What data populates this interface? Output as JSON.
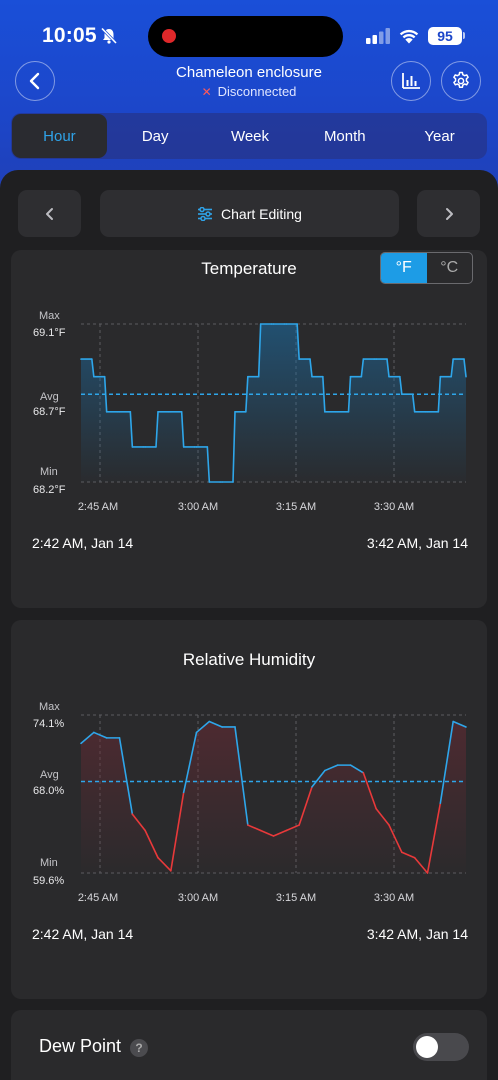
{
  "status_bar": {
    "time": "10:05",
    "battery": "95"
  },
  "header": {
    "title": "Chameleon enclosure",
    "connection_status": "Disconnected"
  },
  "tabs": [
    {
      "label": "Hour",
      "active": true
    },
    {
      "label": "Day",
      "active": false
    },
    {
      "label": "Week",
      "active": false
    },
    {
      "label": "Month",
      "active": false
    },
    {
      "label": "Year",
      "active": false
    }
  ],
  "controls": {
    "chart_editing_label": "Chart Editing"
  },
  "temperature_card": {
    "title": "Temperature",
    "units": [
      "°F",
      "°C"
    ],
    "active_unit": "°F",
    "max_label": "Max",
    "max_value": "69.1°F",
    "avg_label": "Avg",
    "avg_value": "68.7°F",
    "min_label": "Min",
    "min_value": "68.2°F",
    "x_ticks": [
      "2:45 AM",
      "3:00 AM",
      "3:15 AM",
      "3:30 AM"
    ],
    "range_start": "2:42 AM,  Jan 14",
    "range_end": "3:42 AM,  Jan 14"
  },
  "humidity_card": {
    "title": "Relative Humidity",
    "max_label": "Max",
    "max_value": "74.1%",
    "avg_label": "Avg",
    "avg_value": "68.0%",
    "min_label": "Min",
    "min_value": "59.6%",
    "x_ticks": [
      "2:45 AM",
      "3:00 AM",
      "3:15 AM",
      "3:30 AM"
    ],
    "range_start": "2:42 AM,  Jan 14",
    "range_end": "3:42 AM,  Jan 14"
  },
  "dew_point": {
    "label": "Dew Point",
    "help_glyph": "?",
    "enabled": false
  },
  "colors": {
    "accent": "#1d9ce6",
    "line_blue": "#2ea6ea",
    "line_red": "#e8393a",
    "header_blue": "#1c46c9"
  },
  "chart_data": [
    {
      "type": "line",
      "title": "Temperature",
      "x": [
        0,
        2,
        4,
        6,
        8,
        10,
        12,
        14,
        16,
        18,
        20,
        22,
        24,
        26,
        28,
        30,
        32,
        34,
        36,
        38,
        40,
        42,
        44,
        46,
        48,
        50,
        52,
        54,
        56,
        58,
        60
      ],
      "series": [
        {
          "values": [
            68.9,
            68.8,
            68.6,
            68.6,
            68.4,
            68.4,
            68.6,
            68.6,
            68.4,
            68.4,
            68.2,
            68.2,
            68.6,
            68.8,
            69.1,
            69.1,
            69.1,
            68.9,
            68.8,
            68.6,
            68.6,
            68.8,
            68.9,
            68.9,
            68.8,
            68.7,
            68.6,
            68.6,
            68.8,
            68.9,
            68.8
          ]
        }
      ],
      "ylim": [
        68.2,
        69.1
      ],
      "avg": 68.7
    },
    {
      "type": "line",
      "title": "Relative Humidity",
      "x": [
        0,
        2,
        4,
        6,
        8,
        10,
        12,
        14,
        16,
        18,
        20,
        22,
        24,
        26,
        28,
        30,
        32,
        34,
        36,
        38,
        40,
        42,
        44,
        46,
        48,
        50,
        52,
        54,
        56,
        58,
        60
      ],
      "series": [
        {
          "values": [
            71.5,
            72.5,
            72.0,
            72.0,
            65.0,
            63.5,
            61.0,
            59.8,
            67.0,
            72.5,
            73.5,
            73.0,
            73.0,
            64.0,
            63.5,
            63.0,
            63.5,
            64.0,
            67.5,
            69.0,
            69.5,
            69.5,
            68.8,
            65.5,
            64.0,
            61.5,
            61.0,
            59.6,
            66.0,
            73.5,
            73.0
          ]
        }
      ],
      "ylim": [
        59.6,
        74.1
      ],
      "avg": 68.0
    }
  ]
}
